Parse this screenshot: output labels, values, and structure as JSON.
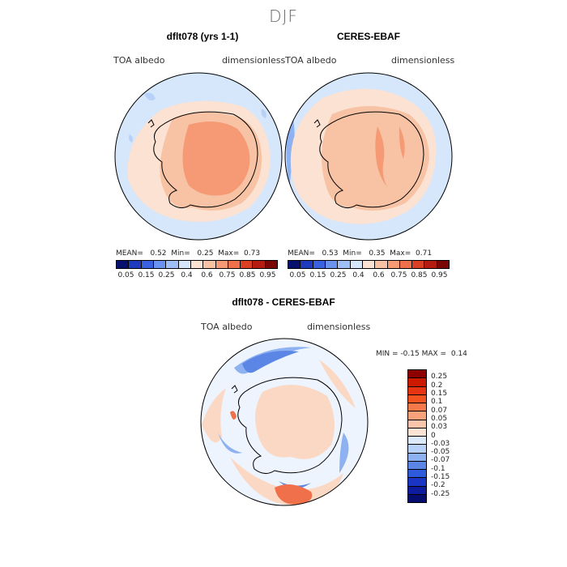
{
  "season": "DJF",
  "panels": [
    {
      "title": "dflt078 (yrs 1-1)",
      "variable": "TOA albedo",
      "units": "dimensionless",
      "mean_label": "MEAN=",
      "mean": "0.52",
      "min_label": "Min=",
      "min": "0.25",
      "max_label": "Max=",
      "max": "0.73"
    },
    {
      "title": "CERES-EBAF",
      "variable": "TOA albedo",
      "units": "dimensionless",
      "mean_label": "MEAN=",
      "mean": "0.53",
      "min_label": "Min=",
      "min": "0.35",
      "max_label": "Max=",
      "max": "0.71"
    }
  ],
  "diff": {
    "title": "dflt078 - CERES-EBAF",
    "variable": "TOA albedo",
    "units": "dimensionless",
    "min_label": "MIN =",
    "min": "-0.15",
    "max_label": "MAX =",
    "max": "0.14"
  },
  "colorbar_labels": [
    "0.05",
    "0.15",
    "0.25",
    "0.4",
    "0.6",
    "0.75",
    "0.85",
    "0.95"
  ],
  "colorbar_colors": [
    "#08106e",
    "#1f3bbd",
    "#3a62e0",
    "#6b92ee",
    "#9fbff7",
    "#d6e6fb",
    "#fbe2d2",
    "#f7c3a4",
    "#f59a75",
    "#f0704b",
    "#dc4024",
    "#b51c11",
    "#7a0606"
  ],
  "diff_colorbar_labels": [
    "0.25",
    "0.2",
    "0.15",
    "0.1",
    "0.07",
    "0.05",
    "0.03",
    "0",
    "-0.03",
    "-0.05",
    "-0.07",
    "-0.1",
    "-0.15",
    "-0.2",
    "-0.25"
  ],
  "diff_colorbar_colors": [
    "#8c0000",
    "#cc1a00",
    "#e73412",
    "#f3541f",
    "#f6794a",
    "#f8a27c",
    "#f9c6ac",
    "#fde3d4",
    "#dce9fb",
    "#b8d1f8",
    "#8eb2f1",
    "#5b86e6",
    "#2e5bdb",
    "#1a34c4",
    "#0d1c9c",
    "#050e6e"
  ],
  "map_colors": {
    "ocean": "#d6e6fb",
    "ocean_dark": "#b8d1f8",
    "ocean_blue": "#8eb2f1",
    "ice": "#fbe2d2",
    "land": "#f7c3a4",
    "land_high": "#f59a75",
    "diff_white": "#eef4fd",
    "diff_peach": "#fbd8c4",
    "diff_red": "#f0704b",
    "diff_blue": "#5b86e6",
    "coast": "#000000"
  }
}
